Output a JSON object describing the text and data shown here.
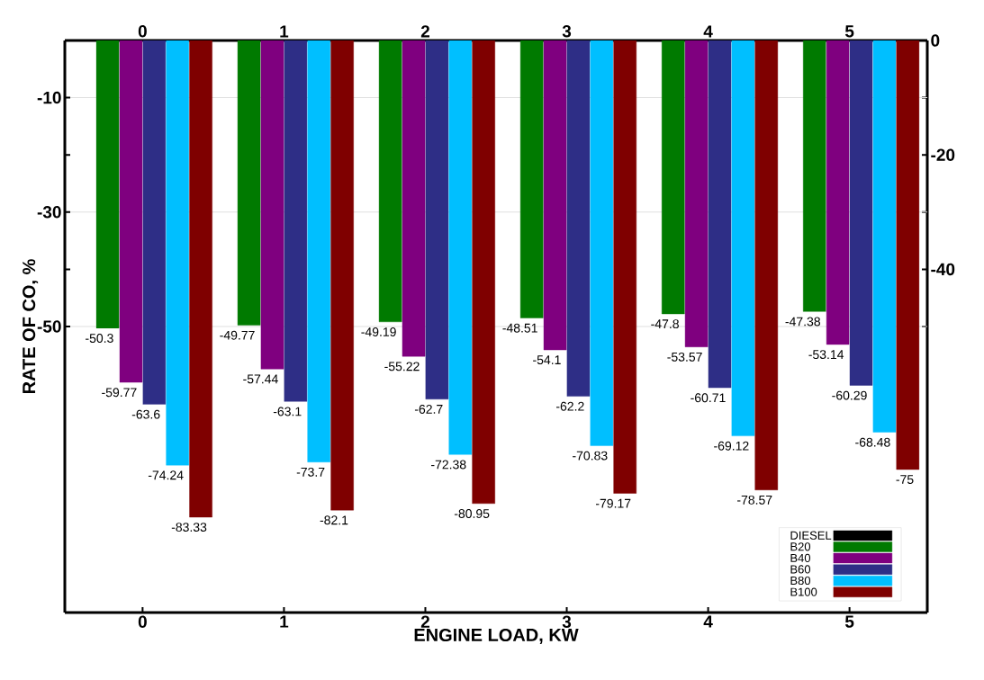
{
  "chart_data": {
    "type": "bar",
    "xlabel": "ENGINE LOAD, KW",
    "ylabel": "RATE OF CO, %",
    "categories": [
      "0",
      "1",
      "2",
      "3",
      "4",
      "5"
    ],
    "series": [
      {
        "name": "DIESEL",
        "color": "#000000",
        "values": [
          0,
          0,
          0,
          0,
          0,
          0
        ]
      },
      {
        "name": "B20",
        "color": "#007a00",
        "values": [
          -50.3,
          -49.77,
          -49.19,
          -48.51,
          -47.8,
          -47.38
        ],
        "value_labels": [
          "-50.3",
          "-49.77",
          "-49.19",
          "-48.51",
          "-47.8",
          "-47.38"
        ]
      },
      {
        "name": "B40",
        "color": "#7f007f",
        "values": [
          -59.77,
          -57.44,
          -55.22,
          -54.1,
          -53.57,
          -53.14
        ],
        "value_labels": [
          "-59.77",
          "-57.44",
          "-55.22",
          "-54.1",
          "-53.57",
          "-53.14"
        ]
      },
      {
        "name": "B60",
        "color": "#2e2e86",
        "values": [
          -63.6,
          -63.1,
          -62.7,
          -62.2,
          -60.71,
          -60.29
        ],
        "value_labels": [
          "-63.6",
          "-63.1",
          "-62.7",
          "-62.2",
          "-60.71",
          "-60.29"
        ]
      },
      {
        "name": "B80",
        "color": "#00bfff",
        "values": [
          -74.24,
          -73.7,
          -72.38,
          -70.83,
          -69.12,
          -68.48
        ],
        "value_labels": [
          "-74.24",
          "-73.7",
          "-72.38",
          "-70.83",
          "-69.12",
          "-68.48"
        ]
      },
      {
        "name": "B100",
        "color": "#7f0000",
        "values": [
          -83.33,
          -82.1,
          -80.95,
          -79.17,
          -78.57,
          -75
        ],
        "value_labels": [
          "-83.33",
          "-82.1",
          "-80.95",
          "-79.17",
          "-78.57",
          "-75"
        ]
      }
    ],
    "ylim": [
      -100,
      0
    ],
    "yticks": [
      -10,
      {
        "value": -20,
        "label": null
      },
      -30,
      {
        "value": -40,
        "label": null
      },
      -50
    ],
    "y2lim": [
      -100,
      0
    ],
    "y2ticks": [
      0,
      {
        "value": -10,
        "label": null
      },
      -20,
      {
        "value": -30,
        "label": null
      },
      -40,
      {
        "value": -50,
        "label": null
      }
    ],
    "grid": "y",
    "legend": "bottom right"
  }
}
